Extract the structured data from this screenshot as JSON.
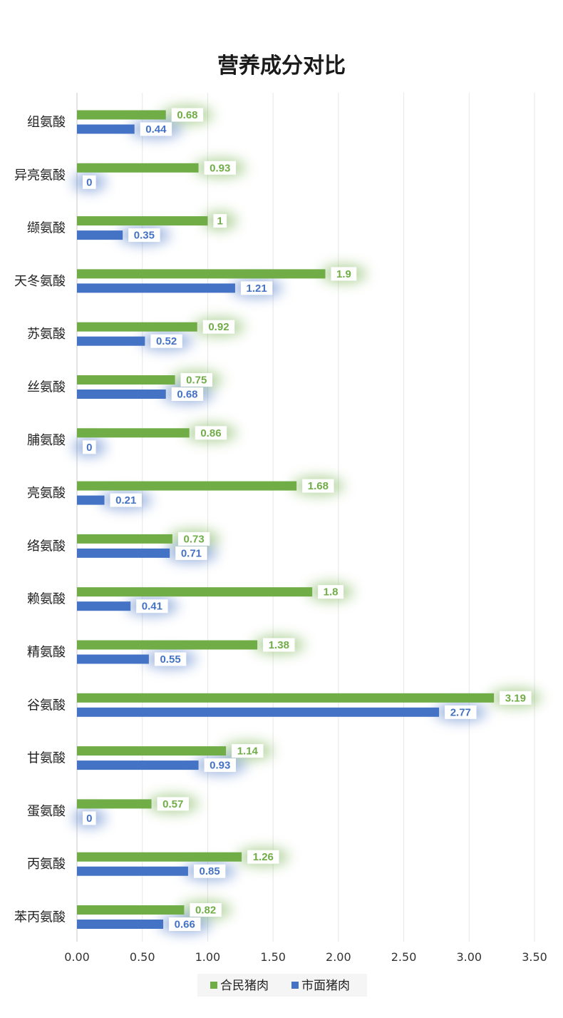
{
  "chart_data": {
    "type": "bar",
    "orientation": "horizontal",
    "title": "营养成分对比",
    "categories": [
      "组氨酸",
      "异亮氨酸",
      "缬氨酸",
      "天冬氨酸",
      "苏氨酸",
      "丝氨酸",
      "脯氨酸",
      "亮氨酸",
      "络氨酸",
      "赖氨酸",
      "精氨酸",
      "谷氨酸",
      "甘氨酸",
      "蛋氨酸",
      "丙氨酸",
      "苯丙氨酸"
    ],
    "series": [
      {
        "name": "合民猪肉",
        "color": "#70ad47",
        "values": [
          0.68,
          0.93,
          1,
          1.9,
          0.92,
          0.75,
          0.86,
          1.68,
          0.73,
          1.8,
          1.38,
          3.19,
          1.14,
          0.57,
          1.26,
          0.82
        ],
        "labels": [
          "0.68",
          "0.93",
          "1",
          "1.9",
          "0.92",
          "0.75",
          "0.86",
          "1.68",
          "0.73",
          "1.8",
          "1.38",
          "3.19",
          "1.14",
          "0.57",
          "1.26",
          "0.82"
        ]
      },
      {
        "name": "市面猪肉",
        "color": "#4472c4",
        "values": [
          0.44,
          0,
          0.35,
          1.21,
          0.52,
          0.68,
          0,
          0.21,
          0.71,
          0.41,
          0.55,
          2.77,
          0.93,
          0,
          0.85,
          0.66
        ],
        "labels": [
          "0.44",
          "0",
          "0.35",
          "1.21",
          "0.52",
          "0.68",
          "0",
          "0.21",
          "0.71",
          "0.41",
          "0.55",
          "2.77",
          "0.93",
          "0",
          "0.85",
          "0.66"
        ]
      }
    ],
    "xlim": [
      0,
      3.5
    ],
    "xticks": [
      "0.00",
      "0.50",
      "1.00",
      "1.50",
      "2.00",
      "2.50",
      "3.00",
      "3.50"
    ],
    "grid": true,
    "legend_position": "bottom"
  }
}
